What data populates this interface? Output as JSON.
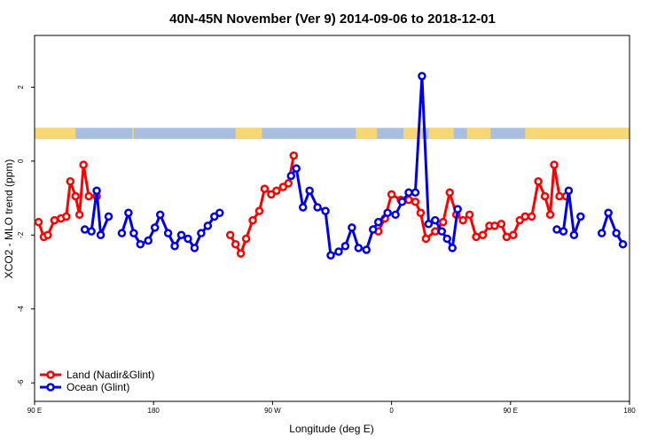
{
  "chart_data": {
    "type": "line",
    "title": "40N-45N November (Ver 9)   2014-09-06 to 2018-12-01",
    "xlabel": "Longitude (deg E)",
    "ylabel": "XCO2 - MLO trend (ppm)",
    "xlim": [
      90,
      540
    ],
    "ylim": [
      -6.5,
      3.4
    ],
    "x_ticks": [
      {
        "value": 90,
        "label": "90 E"
      },
      {
        "value": 180,
        "label": "180"
      },
      {
        "value": 270,
        "label": "90 W"
      },
      {
        "value": 360,
        "label": "0"
      },
      {
        "value": 450,
        "label": "90 E"
      },
      {
        "value": 540,
        "label": "180"
      }
    ],
    "y_ticks": [
      {
        "value": -6,
        "label": "-6"
      },
      {
        "value": -4,
        "label": "-4"
      },
      {
        "value": -2,
        "label": "-2"
      },
      {
        "value": 0,
        "label": "0"
      },
      {
        "value": 2,
        "label": "2"
      }
    ],
    "grid": false,
    "legend_position": "bottom-left",
    "land_mask": {
      "y_range": [
        0.6,
        0.9
      ],
      "land_color": "#F7D774",
      "ocean_color": "#A7BEDF",
      "land_intervals": [
        [
          90,
          121
        ],
        [
          164,
          165
        ],
        [
          242,
          262
        ],
        [
          333,
          349
        ],
        [
          369,
          383
        ],
        [
          388,
          407
        ],
        [
          417,
          435
        ],
        [
          461,
          565
        ],
        [
          576,
          590
        ],
        [
          611,
          638
        ]
      ]
    },
    "series": [
      {
        "name": "Land (Nadir&Glint)",
        "color": "#FF0000",
        "segments": [
          [
            [
              93,
              -1.65
            ],
            [
              97,
              -2.05
            ],
            [
              100,
              -2.0
            ],
            [
              105,
              -1.6
            ],
            [
              110,
              -1.55
            ],
            [
              114,
              -1.5
            ],
            [
              117,
              -0.55
            ],
            [
              121,
              -0.95
            ],
            [
              124,
              -1.45
            ],
            [
              127,
              -0.1
            ],
            [
              131,
              -0.95
            ],
            [
              137,
              -0.95
            ]
          ],
          [
            [
              238,
              -2.0
            ],
            [
              242,
              -2.25
            ],
            [
              246,
              -2.5
            ],
            [
              250,
              -2.1
            ],
            [
              255,
              -1.6
            ],
            [
              260,
              -1.35
            ],
            [
              264,
              -0.75
            ],
            [
              269,
              -0.9
            ],
            [
              273,
              -0.8
            ],
            [
              278,
              -0.7
            ],
            [
              282,
              -0.6
            ],
            [
              286,
              0.15
            ]
          ],
          [
            [
              350,
              -1.9
            ],
            [
              355,
              -1.55
            ],
            [
              360,
              -0.9
            ],
            [
              367,
              -1.05
            ],
            [
              373,
              -1.05
            ],
            [
              378,
              -1.1
            ],
            [
              382,
              -1.4
            ],
            [
              386,
              -2.1
            ],
            [
              393,
              -1.9
            ],
            [
              399,
              -1.65
            ],
            [
              404,
              -0.85
            ],
            [
              409,
              -1.45
            ],
            [
              414,
              -1.6
            ],
            [
              419,
              -1.45
            ],
            [
              424,
              -2.05
            ],
            [
              429,
              -2.0
            ],
            [
              434,
              -1.75
            ],
            [
              438,
              -1.75
            ],
            [
              443,
              -1.7
            ],
            [
              447,
              -2.05
            ],
            [
              452,
              -2.0
            ],
            [
              457,
              -1.6
            ],
            [
              461,
              -1.5
            ],
            [
              466,
              -1.5
            ],
            [
              471,
              -0.55
            ],
            [
              476,
              -0.95
            ],
            [
              480,
              -1.45
            ],
            [
              483,
              -0.1
            ],
            [
              487,
              -0.95
            ],
            [
              492,
              -0.95
            ]
          ]
        ]
      },
      {
        "name": "Ocean (Glint)",
        "color": "#0000EE",
        "segments": [
          [
            [
              128,
              -1.85
            ],
            [
              133,
              -1.9
            ],
            [
              137,
              -0.8
            ],
            [
              140,
              -2.0
            ],
            [
              146,
              -1.5
            ]
          ],
          [
            [
              156,
              -1.95
            ],
            [
              161,
              -1.4
            ],
            [
              165,
              -1.95
            ],
            [
              170,
              -2.25
            ],
            [
              176,
              -2.15
            ],
            [
              181,
              -1.8
            ],
            [
              185,
              -1.45
            ],
            [
              191,
              -1.95
            ],
            [
              196,
              -2.3
            ],
            [
              201,
              -2.0
            ],
            [
              206,
              -2.1
            ],
            [
              211,
              -2.35
            ],
            [
              216,
              -1.95
            ],
            [
              221,
              -1.75
            ],
            [
              226,
              -1.5
            ],
            [
              230,
              -1.4
            ]
          ],
          [
            [
              284,
              -0.4
            ],
            [
              288,
              -0.2
            ],
            [
              293,
              -1.25
            ],
            [
              298,
              -0.8
            ],
            [
              304,
              -1.25
            ],
            [
              310,
              -1.35
            ],
            [
              314,
              -2.55
            ],
            [
              320,
              -2.45
            ],
            [
              325,
              -2.3
            ],
            [
              330,
              -1.8
            ],
            [
              335,
              -2.35
            ],
            [
              341,
              -2.4
            ],
            [
              346,
              -1.85
            ],
            [
              350,
              -1.65
            ],
            [
              357,
              -1.4
            ],
            [
              363,
              -1.45
            ],
            [
              368,
              -1.1
            ],
            [
              373,
              -0.85
            ],
            [
              378,
              -0.85
            ],
            [
              383,
              2.3
            ],
            [
              388,
              -1.7
            ],
            [
              393,
              -1.6
            ],
            [
              398,
              -1.9
            ],
            [
              402,
              -2.1
            ],
            [
              406,
              -2.35
            ],
            [
              410,
              -1.3
            ]
          ],
          [
            [
              485,
              -1.85
            ],
            [
              490,
              -1.9
            ],
            [
              494,
              -0.8
            ],
            [
              498,
              -2.0
            ],
            [
              503,
              -1.5
            ]
          ],
          [
            [
              519,
              -1.95
            ],
            [
              524,
              -1.4
            ],
            [
              530,
              -1.95
            ],
            [
              535,
              -2.25
            ]
          ]
        ]
      }
    ]
  }
}
